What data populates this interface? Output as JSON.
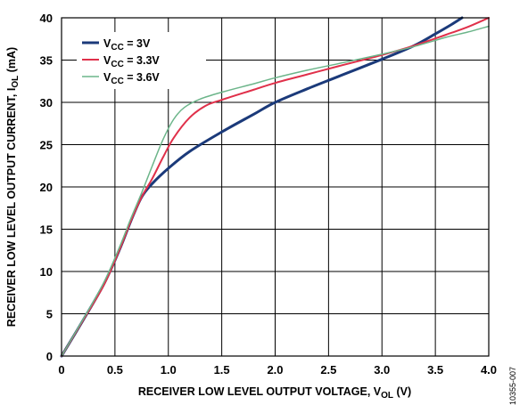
{
  "chart_data": {
    "type": "line",
    "xlabel_main": "RECEIVER LOW LEVEL OUTPUT VOLTAGE, V",
    "xlabel_sub": "OL",
    "xlabel_tail": " (V)",
    "ylabel_main": "RECEIVER LOW LEVEL OUTPUT CURRENT, I",
    "ylabel_sub": "OL",
    "ylabel_tail": " (mA)",
    "xlim": [
      0,
      4.0
    ],
    "ylim": [
      0,
      40
    ],
    "x_ticks": [
      "0",
      "0.5",
      "1.0",
      "1.5",
      "2.0",
      "2.5",
      "3.0",
      "3.5",
      "4.0"
    ],
    "y_ticks": [
      "0",
      "5",
      "10",
      "15",
      "20",
      "25",
      "30",
      "35",
      "40"
    ],
    "grid": true,
    "legend_position": "top-left",
    "figure_id": "10355-007",
    "series": [
      {
        "name_main": "V",
        "name_sub": "CC",
        "name_tail": " = 3V",
        "color": "#1b3a7a",
        "width": 3,
        "points": [
          [
            0,
            0
          ],
          [
            0.2,
            4.2
          ],
          [
            0.4,
            8.6
          ],
          [
            0.55,
            12.8
          ],
          [
            0.65,
            16
          ],
          [
            0.75,
            18.8
          ],
          [
            0.85,
            20.4
          ],
          [
            1.0,
            22.2
          ],
          [
            1.2,
            24.2
          ],
          [
            1.5,
            26.5
          ],
          [
            1.8,
            28.6
          ],
          [
            2.0,
            30
          ],
          [
            2.3,
            31.6
          ],
          [
            2.6,
            33.1
          ],
          [
            3.0,
            35.1
          ],
          [
            3.3,
            36.7
          ],
          [
            3.5,
            38.1
          ],
          [
            3.65,
            39.2
          ],
          [
            3.75,
            40
          ]
        ]
      },
      {
        "name_main": "V",
        "name_sub": "CC",
        "name_tail": " = 3.3V",
        "color": "#e0304a",
        "width": 2,
        "points": [
          [
            0,
            0
          ],
          [
            0.2,
            4.2
          ],
          [
            0.4,
            8.5
          ],
          [
            0.55,
            12.8
          ],
          [
            0.65,
            16
          ],
          [
            0.75,
            18.8
          ],
          [
            0.85,
            21
          ],
          [
            0.95,
            23.5
          ],
          [
            1.05,
            25.8
          ],
          [
            1.2,
            28.2
          ],
          [
            1.35,
            29.6
          ],
          [
            1.5,
            30.3
          ],
          [
            1.8,
            31.5
          ],
          [
            2.0,
            32.3
          ],
          [
            2.3,
            33.3
          ],
          [
            2.6,
            34.3
          ],
          [
            3.0,
            35.6
          ],
          [
            3.3,
            36.7
          ],
          [
            3.6,
            38
          ],
          [
            3.8,
            38.9
          ],
          [
            4.0,
            40
          ]
        ]
      },
      {
        "name_main": "V",
        "name_sub": "CC",
        "name_tail": " = 3.6V",
        "color": "#6cb58a",
        "width": 1.5,
        "points": [
          [
            0,
            0
          ],
          [
            0.2,
            4.3
          ],
          [
            0.4,
            8.8
          ],
          [
            0.55,
            13.1
          ],
          [
            0.65,
            16.3
          ],
          [
            0.75,
            19.3
          ],
          [
            0.85,
            22.5
          ],
          [
            0.95,
            25.6
          ],
          [
            1.05,
            28
          ],
          [
            1.15,
            29.4
          ],
          [
            1.3,
            30.4
          ],
          [
            1.5,
            31.2
          ],
          [
            1.8,
            32.2
          ],
          [
            2.0,
            32.9
          ],
          [
            2.3,
            33.8
          ],
          [
            2.6,
            34.6
          ],
          [
            3.0,
            35.7
          ],
          [
            3.3,
            36.6
          ],
          [
            3.6,
            37.7
          ],
          [
            3.8,
            38.3
          ],
          [
            4.0,
            39
          ]
        ]
      }
    ]
  }
}
